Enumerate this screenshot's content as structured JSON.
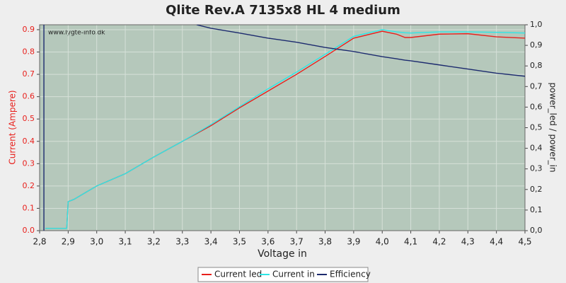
{
  "chart_data": {
    "type": "line",
    "title": "Qlite Rev.A 7135x8 HL 4 medium",
    "watermark": "www.lygte-info.dk",
    "xlabel": "Voltage in",
    "ylabel": "Current (Ampere)",
    "y2label": "power_led / power_in",
    "x": [
      2.815,
      2.815,
      2.82,
      2.895,
      2.9,
      2.92,
      3.0,
      3.1,
      3.2,
      3.3,
      3.35,
      3.4,
      3.5,
      3.6,
      3.7,
      3.8,
      3.9,
      4.0,
      4.05,
      4.08,
      4.1,
      4.2,
      4.3,
      4.4,
      4.5
    ],
    "series": [
      {
        "name": "Current led",
        "color": "#e8201c",
        "values": [
          null,
          null,
          0.01,
          0.01,
          0.13,
          0.14,
          0.2,
          0.255,
          0.33,
          0.4,
          0.435,
          0.47,
          0.55,
          0.625,
          0.7,
          0.78,
          0.862,
          0.893,
          0.88,
          0.865,
          0.865,
          0.88,
          0.882,
          0.868,
          0.862
        ]
      },
      {
        "name": "Current in",
        "color": "#2ee6e6",
        "values": [
          null,
          null,
          0.01,
          0.01,
          0.13,
          0.14,
          0.2,
          0.255,
          0.33,
          0.4,
          0.437,
          0.475,
          0.555,
          0.635,
          0.71,
          0.79,
          0.87,
          0.9,
          0.89,
          0.886,
          0.885,
          0.89,
          0.89,
          0.888,
          0.885
        ]
      },
      {
        "name": "Efficiency",
        "color": "#1c2a6e",
        "axis": "y2",
        "values": [
          0,
          1,
          null,
          null,
          null,
          null,
          null,
          null,
          null,
          null,
          1.0,
          0.983,
          0.96,
          0.935,
          0.915,
          0.89,
          0.87,
          0.845,
          0.835,
          0.828,
          0.825,
          0.805,
          0.785,
          0.765,
          0.75
        ]
      }
    ],
    "xlim": [
      2.8,
      4.5
    ],
    "xticks": [
      {
        "value": 2.8,
        "label": "2,8"
      },
      {
        "value": 2.9,
        "label": "2,9"
      },
      {
        "value": 3.0,
        "label": "3,0"
      },
      {
        "value": 3.1,
        "label": "3,1"
      },
      {
        "value": 3.2,
        "label": "3,2"
      },
      {
        "value": 3.3,
        "label": "3,3"
      },
      {
        "value": 3.4,
        "label": "3,4"
      },
      {
        "value": 3.5,
        "label": "3,5"
      },
      {
        "value": 3.6,
        "label": "3,6"
      },
      {
        "value": 3.7,
        "label": "3,7"
      },
      {
        "value": 3.8,
        "label": "3,8"
      },
      {
        "value": 3.9,
        "label": "3,9"
      },
      {
        "value": 4.0,
        "label": "4,0"
      },
      {
        "value": 4.1,
        "label": "4,1"
      },
      {
        "value": 4.2,
        "label": "4,2"
      },
      {
        "value": 4.3,
        "label": "4,3"
      },
      {
        "value": 4.4,
        "label": "4,4"
      },
      {
        "value": 4.5,
        "label": "4,5"
      }
    ],
    "ylim": [
      0,
      0.922
    ],
    "yticks": [
      {
        "value": 0,
        "label": "0.0"
      },
      {
        "value": 0.1,
        "label": "0.1"
      },
      {
        "value": 0.2,
        "label": "0.2"
      },
      {
        "value": 0.3,
        "label": "0.3"
      },
      {
        "value": 0.4,
        "label": "0.4"
      },
      {
        "value": 0.5,
        "label": "0.5"
      },
      {
        "value": 0.6,
        "label": "0.6"
      },
      {
        "value": 0.7,
        "label": "0.7"
      },
      {
        "value": 0.8,
        "label": "0.8"
      },
      {
        "value": 0.9,
        "label": "0.9"
      }
    ],
    "y2lim": [
      0,
      1
    ],
    "y2ticks": [
      {
        "value": 0,
        "label": "0,0"
      },
      {
        "value": 0.1,
        "label": "0,1"
      },
      {
        "value": 0.2,
        "label": "0,2"
      },
      {
        "value": 0.3,
        "label": "0,3"
      },
      {
        "value": 0.4,
        "label": "0,4"
      },
      {
        "value": 0.5,
        "label": "0,5"
      },
      {
        "value": 0.6,
        "label": "0,6"
      },
      {
        "value": 0.7,
        "label": "0,7"
      },
      {
        "value": 0.8,
        "label": "0,8"
      },
      {
        "value": 0.9,
        "label": "0,9"
      },
      {
        "value": 1,
        "label": "1,0"
      }
    ],
    "grid": true,
    "legend": "bottom"
  }
}
